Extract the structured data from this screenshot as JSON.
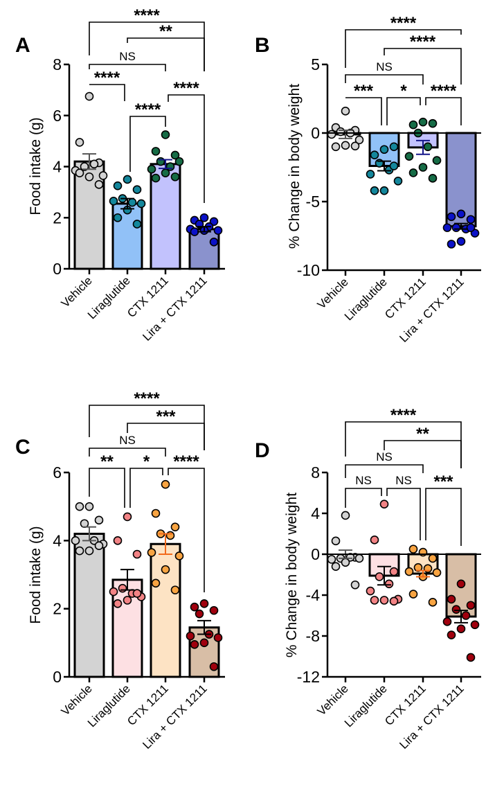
{
  "chart_data": [
    {
      "panel": "A",
      "type": "bar",
      "ylabel": "Food intake (g)",
      "ylim": [
        0,
        8
      ],
      "yticks": [
        0,
        2,
        4,
        6,
        8
      ],
      "categories": [
        "Vehicle",
        "Liraglutide",
        "CTX 1211",
        "Lira + CTX 1211"
      ],
      "bar_colors": [
        "#d3d3d3",
        "#91c1f7",
        "#c2c2fd",
        "#8a92cd"
      ],
      "dot_colors": [
        "#d3d3d3",
        "#14879c",
        "#166c46",
        "#0b12c8"
      ],
      "error_colors": [
        "#555555",
        "#000000",
        "#14168a",
        "#000000"
      ],
      "means": [
        4.2,
        2.55,
        4.1,
        1.55
      ],
      "sem": [
        0.3,
        0.2,
        0.17,
        0.1
      ],
      "points": [
        [
          6.75,
          4.95,
          4.15,
          4.0,
          4.1,
          3.85,
          3.65,
          3.6,
          3.75,
          3.3
        ],
        [
          3.5,
          3.25,
          3.1,
          2.75,
          2.6,
          2.65,
          2.55,
          2.3,
          2.0,
          1.75
        ],
        [
          5.25,
          4.6,
          4.45,
          4.2,
          4.0,
          3.9,
          4.2,
          3.75,
          3.55,
          3.6
        ],
        [
          2.0,
          1.9,
          1.85,
          1.75,
          1.65,
          1.55,
          1.5,
          1.5,
          1.45,
          1.05
        ]
      ],
      "comparisons": [
        {
          "from": 0,
          "to": 3,
          "label": "****"
        },
        {
          "from": 1,
          "to": 3,
          "label": "**"
        },
        {
          "from": 0,
          "to": 2,
          "label": "NS"
        },
        {
          "from": 0,
          "to": 1,
          "label": "****"
        },
        {
          "from": 2,
          "to": 3,
          "label": "****"
        },
        {
          "from": 1,
          "to": 2,
          "label": "****"
        }
      ]
    },
    {
      "panel": "B",
      "type": "bar",
      "ylabel": "% Change in body weight",
      "ylim": [
        -10,
        5
      ],
      "yticks": [
        -10,
        -5,
        0,
        5
      ],
      "categories": [
        "Vehicle",
        "Liraglutide",
        "CTX 1211",
        "Lira + CTX 1211"
      ],
      "bar_colors": [
        "#d3d3d3",
        "#91c1f7",
        "#c2c2fd",
        "#8a92cd"
      ],
      "dot_colors": [
        "#d3d3d3",
        "#14879c",
        "#166c46",
        "#0b12c8"
      ],
      "error_colors": [
        "#555555",
        "#000000",
        "#14168a",
        "#000000"
      ],
      "means": [
        -0.1,
        -2.4,
        -1.05,
        -6.8
      ],
      "sem": [
        0.3,
        0.35,
        0.5,
        0.2
      ],
      "points": [
        [
          1.6,
          0.4,
          0.2,
          0.1,
          0.0,
          -0.1,
          -0.5,
          -0.9,
          -1.0,
          -0.95
        ],
        [
          -1.2,
          -1.6,
          -1.0,
          -2.2,
          -2.7,
          -3.0,
          -3.5,
          -4.2,
          -4.2,
          -2.4
        ],
        [
          0.8,
          0.6,
          0.7,
          0.0,
          -1.0,
          -1.7,
          -2.0,
          -2.5,
          -2.9,
          -3.3
        ],
        [
          -5.9,
          -6.1,
          -6.3,
          -6.9,
          -7.0,
          -6.9,
          -7.3,
          -7.9,
          -8.1,
          -6.9
        ]
      ],
      "comparisons": [
        {
          "from": 0,
          "to": 3,
          "label": "****"
        },
        {
          "from": 1,
          "to": 3,
          "label": "****"
        },
        {
          "from": 0,
          "to": 2,
          "label": "NS"
        },
        {
          "from": 0,
          "to": 1,
          "label": "***"
        },
        {
          "from": 1,
          "to": 2,
          "label": "*"
        },
        {
          "from": 2,
          "to": 3,
          "label": "****"
        }
      ]
    },
    {
      "panel": "C",
      "type": "bar",
      "ylabel": "Food intake (g)",
      "ylim": [
        0,
        6
      ],
      "yticks": [
        0,
        2,
        4,
        6
      ],
      "categories": [
        "Vehicle",
        "Liraglutide",
        "CTX 1211",
        "Lira + CTX 1211"
      ],
      "bar_colors": [
        "#d3d3d3",
        "#fde0e3",
        "#fde3c4",
        "#d8bea6"
      ],
      "dot_colors": [
        "#d3d3d3",
        "#f28385",
        "#f8a442",
        "#a0000e"
      ],
      "error_colors": [
        "#555555",
        "#000000",
        "#f26a1b",
        "#000000"
      ],
      "means": [
        4.2,
        2.85,
        3.9,
        1.45
      ],
      "sem": [
        0.2,
        0.3,
        0.3,
        0.2
      ],
      "points": [
        [
          5.0,
          5.0,
          4.6,
          4.5,
          4.0,
          4.0,
          3.9,
          3.7,
          3.7,
          3.85
        ],
        [
          4.7,
          4.0,
          3.6,
          2.6,
          2.45,
          2.5,
          2.35,
          2.25,
          2.15,
          2.45
        ],
        [
          5.65,
          4.8,
          4.4,
          4.2,
          4.15,
          3.65,
          3.55,
          3.15,
          2.75,
          2.55
        ],
        [
          2.15,
          2.05,
          1.95,
          1.85,
          1.25,
          1.2,
          1.15,
          1.0,
          0.95,
          0.3
        ]
      ],
      "comparisons": [
        {
          "from": 0,
          "to": 3,
          "label": "****"
        },
        {
          "from": 1,
          "to": 3,
          "label": "***"
        },
        {
          "from": 0,
          "to": 2,
          "label": "NS"
        },
        {
          "from": 0,
          "to": 1,
          "label": "**"
        },
        {
          "from": 1,
          "to": 2,
          "label": "*"
        },
        {
          "from": 2,
          "to": 3,
          "label": "****"
        }
      ]
    },
    {
      "panel": "D",
      "type": "bar",
      "ylabel": "% Change in body weight",
      "ylim": [
        -12,
        8
      ],
      "yticks": [
        -12,
        -8,
        -4,
        0,
        4,
        8
      ],
      "categories": [
        "Vehicle",
        "Liraglutide",
        "CTX 1211",
        "Lira + CTX 1211"
      ],
      "bar_colors": [
        "#d3d3d3",
        "#fde0e3",
        "#fde3c4",
        "#d8bea6"
      ],
      "dot_colors": [
        "#d3d3d3",
        "#f28385",
        "#f8a442",
        "#a0000e"
      ],
      "error_colors": [
        "#555555",
        "#000000",
        "#f26a1b",
        "#000000"
      ],
      "means": [
        0.0,
        -2.1,
        -1.9,
        -6.1
      ],
      "sem": [
        0.4,
        0.9,
        0.3,
        0.6
      ],
      "points": [
        [
          3.8,
          1.3,
          -0.3,
          -0.4,
          -0.3,
          -0.5,
          -0.4,
          -0.8,
          -1.2,
          -3.0
        ],
        [
          4.9,
          1.4,
          -1.7,
          -2.2,
          -2.9,
          -3.6,
          -4.4,
          -4.5,
          -4.5,
          -4.6
        ],
        [
          0.2,
          0.5,
          -0.4,
          -1.3,
          -1.4,
          -1.7,
          -1.8,
          -2.2,
          -3.9,
          -4.7
        ],
        [
          -2.9,
          -4.4,
          -5.0,
          -5.4,
          -6.0,
          -6.6,
          -6.9,
          -7.3,
          -7.9,
          -10.1
        ]
      ],
      "comparisons": [
        {
          "from": 0,
          "to": 3,
          "label": "****"
        },
        {
          "from": 1,
          "to": 3,
          "label": "**"
        },
        {
          "from": 0,
          "to": 2,
          "label": "NS"
        },
        {
          "from": 0,
          "to": 1,
          "label": "NS"
        },
        {
          "from": 1,
          "to": 2,
          "label": "NS"
        },
        {
          "from": 2,
          "to": 3,
          "label": "***"
        }
      ]
    }
  ]
}
